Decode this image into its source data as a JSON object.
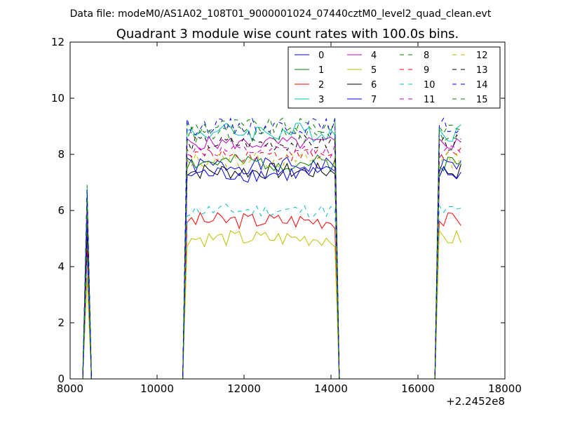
{
  "chart_data": {
    "type": "line",
    "suptitle": "Data file: modeM0/AS1A02_108T01_9000001024_07440cztM0_level2_quad_clean.evt",
    "title": "Quadrant 3 module wise count rates with 100.0s bins.",
    "xlabel": "",
    "ylabel": "",
    "x_offset_label": "+2.2452e8",
    "xlim": [
      8000,
      18000
    ],
    "ylim": [
      0,
      12
    ],
    "x_ticks": [
      "8000",
      "10000",
      "12000",
      "14000",
      "16000",
      "18000"
    ],
    "y_ticks": [
      "0",
      "2",
      "4",
      "6",
      "8",
      "10",
      "12"
    ],
    "grid": false,
    "legend_location": "top-right",
    "legend_columns": 4,
    "segments": [
      {
        "start": 8390,
        "end": 8390
      },
      {
        "start": 10660,
        "end": 14160
      },
      {
        "start": 16460,
        "end": 17060
      }
    ],
    "bin_width": 100,
    "series": [
      {
        "name": "0",
        "color": "#0000ff",
        "dash": "solid",
        "level": 7.6,
        "amp": 0.3
      },
      {
        "name": "1",
        "color": "#008000",
        "dash": "solid",
        "level": 7.7,
        "amp": 0.3
      },
      {
        "name": "2",
        "color": "#ff0000",
        "dash": "solid",
        "level": 5.65,
        "amp": 0.3
      },
      {
        "name": "3",
        "color": "#00bfbf",
        "dash": "solid",
        "level": 8.8,
        "amp": 0.35
      },
      {
        "name": "4",
        "color": "#bf00bf",
        "dash": "solid",
        "level": 8.4,
        "amp": 0.25
      },
      {
        "name": "5",
        "color": "#bfbf00",
        "dash": "solid",
        "level": 5.0,
        "amp": 0.3
      },
      {
        "name": "6",
        "color": "#000000",
        "dash": "solid",
        "level": 7.4,
        "amp": 0.3
      },
      {
        "name": "7",
        "color": "#0000ff",
        "dash": "solid",
        "level": 7.3,
        "amp": 0.3
      },
      {
        "name": "8",
        "color": "#008000",
        "dash": "dashed",
        "level": 9.0,
        "amp": 0.3
      },
      {
        "name": "9",
        "color": "#ff0000",
        "dash": "dashed",
        "level": 8.0,
        "amp": 0.25
      },
      {
        "name": "10",
        "color": "#00bfbf",
        "dash": "dashed",
        "level": 6.0,
        "amp": 0.25
      },
      {
        "name": "11",
        "color": "#bf00bf",
        "dash": "dashed",
        "level": 8.1,
        "amp": 0.25
      },
      {
        "name": "12",
        "color": "#bfbf00",
        "dash": "dashed",
        "level": 7.8,
        "amp": 0.3
      },
      {
        "name": "13",
        "color": "#000000",
        "dash": "dashed",
        "level": 8.4,
        "amp": 0.3
      },
      {
        "name": "14",
        "color": "#0000ff",
        "dash": "dashed",
        "level": 9.0,
        "amp": 0.3
      },
      {
        "name": "15",
        "color": "#008000",
        "dash": "dashed",
        "level": 8.7,
        "amp": 0.3
      }
    ]
  }
}
